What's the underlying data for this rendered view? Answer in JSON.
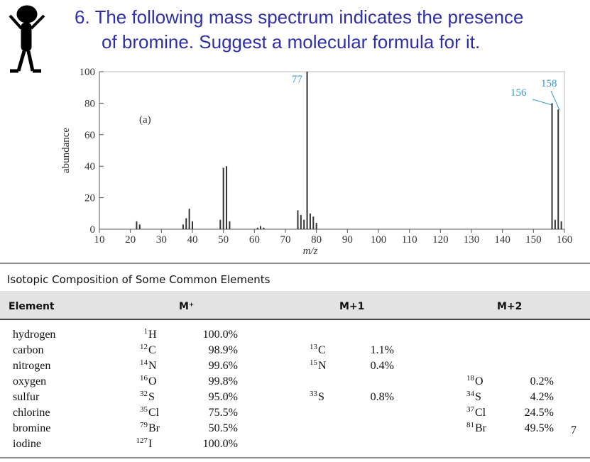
{
  "title": [
    "6. The following mass spectrum indicates the presence",
    "of bromine. Suggest a molecular formula for it."
  ],
  "chart_data": {
    "type": "bar",
    "y_label": "abundance",
    "x_label": "m/z",
    "annotations": [
      "(a)",
      "77",
      "156",
      "158"
    ],
    "x": [
      22,
      23,
      37,
      38,
      39,
      40,
      49,
      50,
      51,
      52,
      61,
      62,
      63,
      74,
      75,
      76,
      77,
      78,
      79,
      80,
      156,
      157,
      158,
      159
    ],
    "values": [
      5,
      3,
      3,
      7,
      13,
      5,
      6,
      39,
      40,
      5,
      1,
      2,
      1,
      12,
      9,
      6,
      100,
      10,
      8,
      4,
      80,
      6,
      76,
      5
    ],
    "color": "#333333",
    "xlim": [
      10,
      160
    ],
    "xticks": [
      10,
      20,
      30,
      40,
      50,
      60,
      70,
      80,
      90,
      100,
      110,
      120,
      130,
      140,
      150,
      160
    ],
    "ylim": [
      0,
      100
    ],
    "yticks": [
      0,
      20,
      40,
      60,
      80,
      100
    ],
    "grid": false
  },
  "table": {
    "title": "Isotopic Composition of Some Common Elements",
    "header": [
      "Element",
      "M⁺",
      "M+1",
      "M+2"
    ],
    "rows": [
      {
        "element": "hydrogen",
        "m": {
          "mass": "1",
          "symbol": "H",
          "percent": "100.0%"
        }
      },
      {
        "element": "carbon",
        "m": {
          "mass": "12",
          "symbol": "C",
          "percent": "98.9%"
        },
        "m1": {
          "mass": "13",
          "symbol": "C",
          "percent": "1.1%"
        }
      },
      {
        "element": "nitrogen",
        "m": {
          "mass": "14",
          "symbol": "N",
          "percent": "99.6%"
        },
        "m1": {
          "mass": "15",
          "symbol": "N",
          "percent": "0.4%"
        }
      },
      {
        "element": "oxygen",
        "m": {
          "mass": "16",
          "symbol": "O",
          "percent": "99.8%"
        },
        "m2": {
          "mass": "18",
          "symbol": "O",
          "percent": "0.2%"
        }
      },
      {
        "element": "sulfur",
        "m": {
          "mass": "32",
          "symbol": "S",
          "percent": "95.0%"
        },
        "m1": {
          "mass": "33",
          "symbol": "S",
          "percent": "0.8%"
        },
        "m2": {
          "mass": "34",
          "symbol": "S",
          "percent": "4.2%"
        }
      },
      {
        "element": "chlorine",
        "m": {
          "mass": "35",
          "symbol": "Cl",
          "percent": "75.5%"
        },
        "m2": {
          "mass": "37",
          "symbol": "Cl",
          "percent": "24.5%"
        }
      },
      {
        "element": "bromine",
        "m": {
          "mass": "79",
          "symbol": "Br",
          "percent": "50.5%"
        },
        "m2": {
          "mass": "81",
          "symbol": "Br",
          "percent": "49.5%"
        }
      },
      {
        "element": "iodine",
        "m": {
          "mass": "127",
          "symbol": "I",
          "percent": "100.0%"
        }
      }
    ]
  },
  "page_number": "7"
}
